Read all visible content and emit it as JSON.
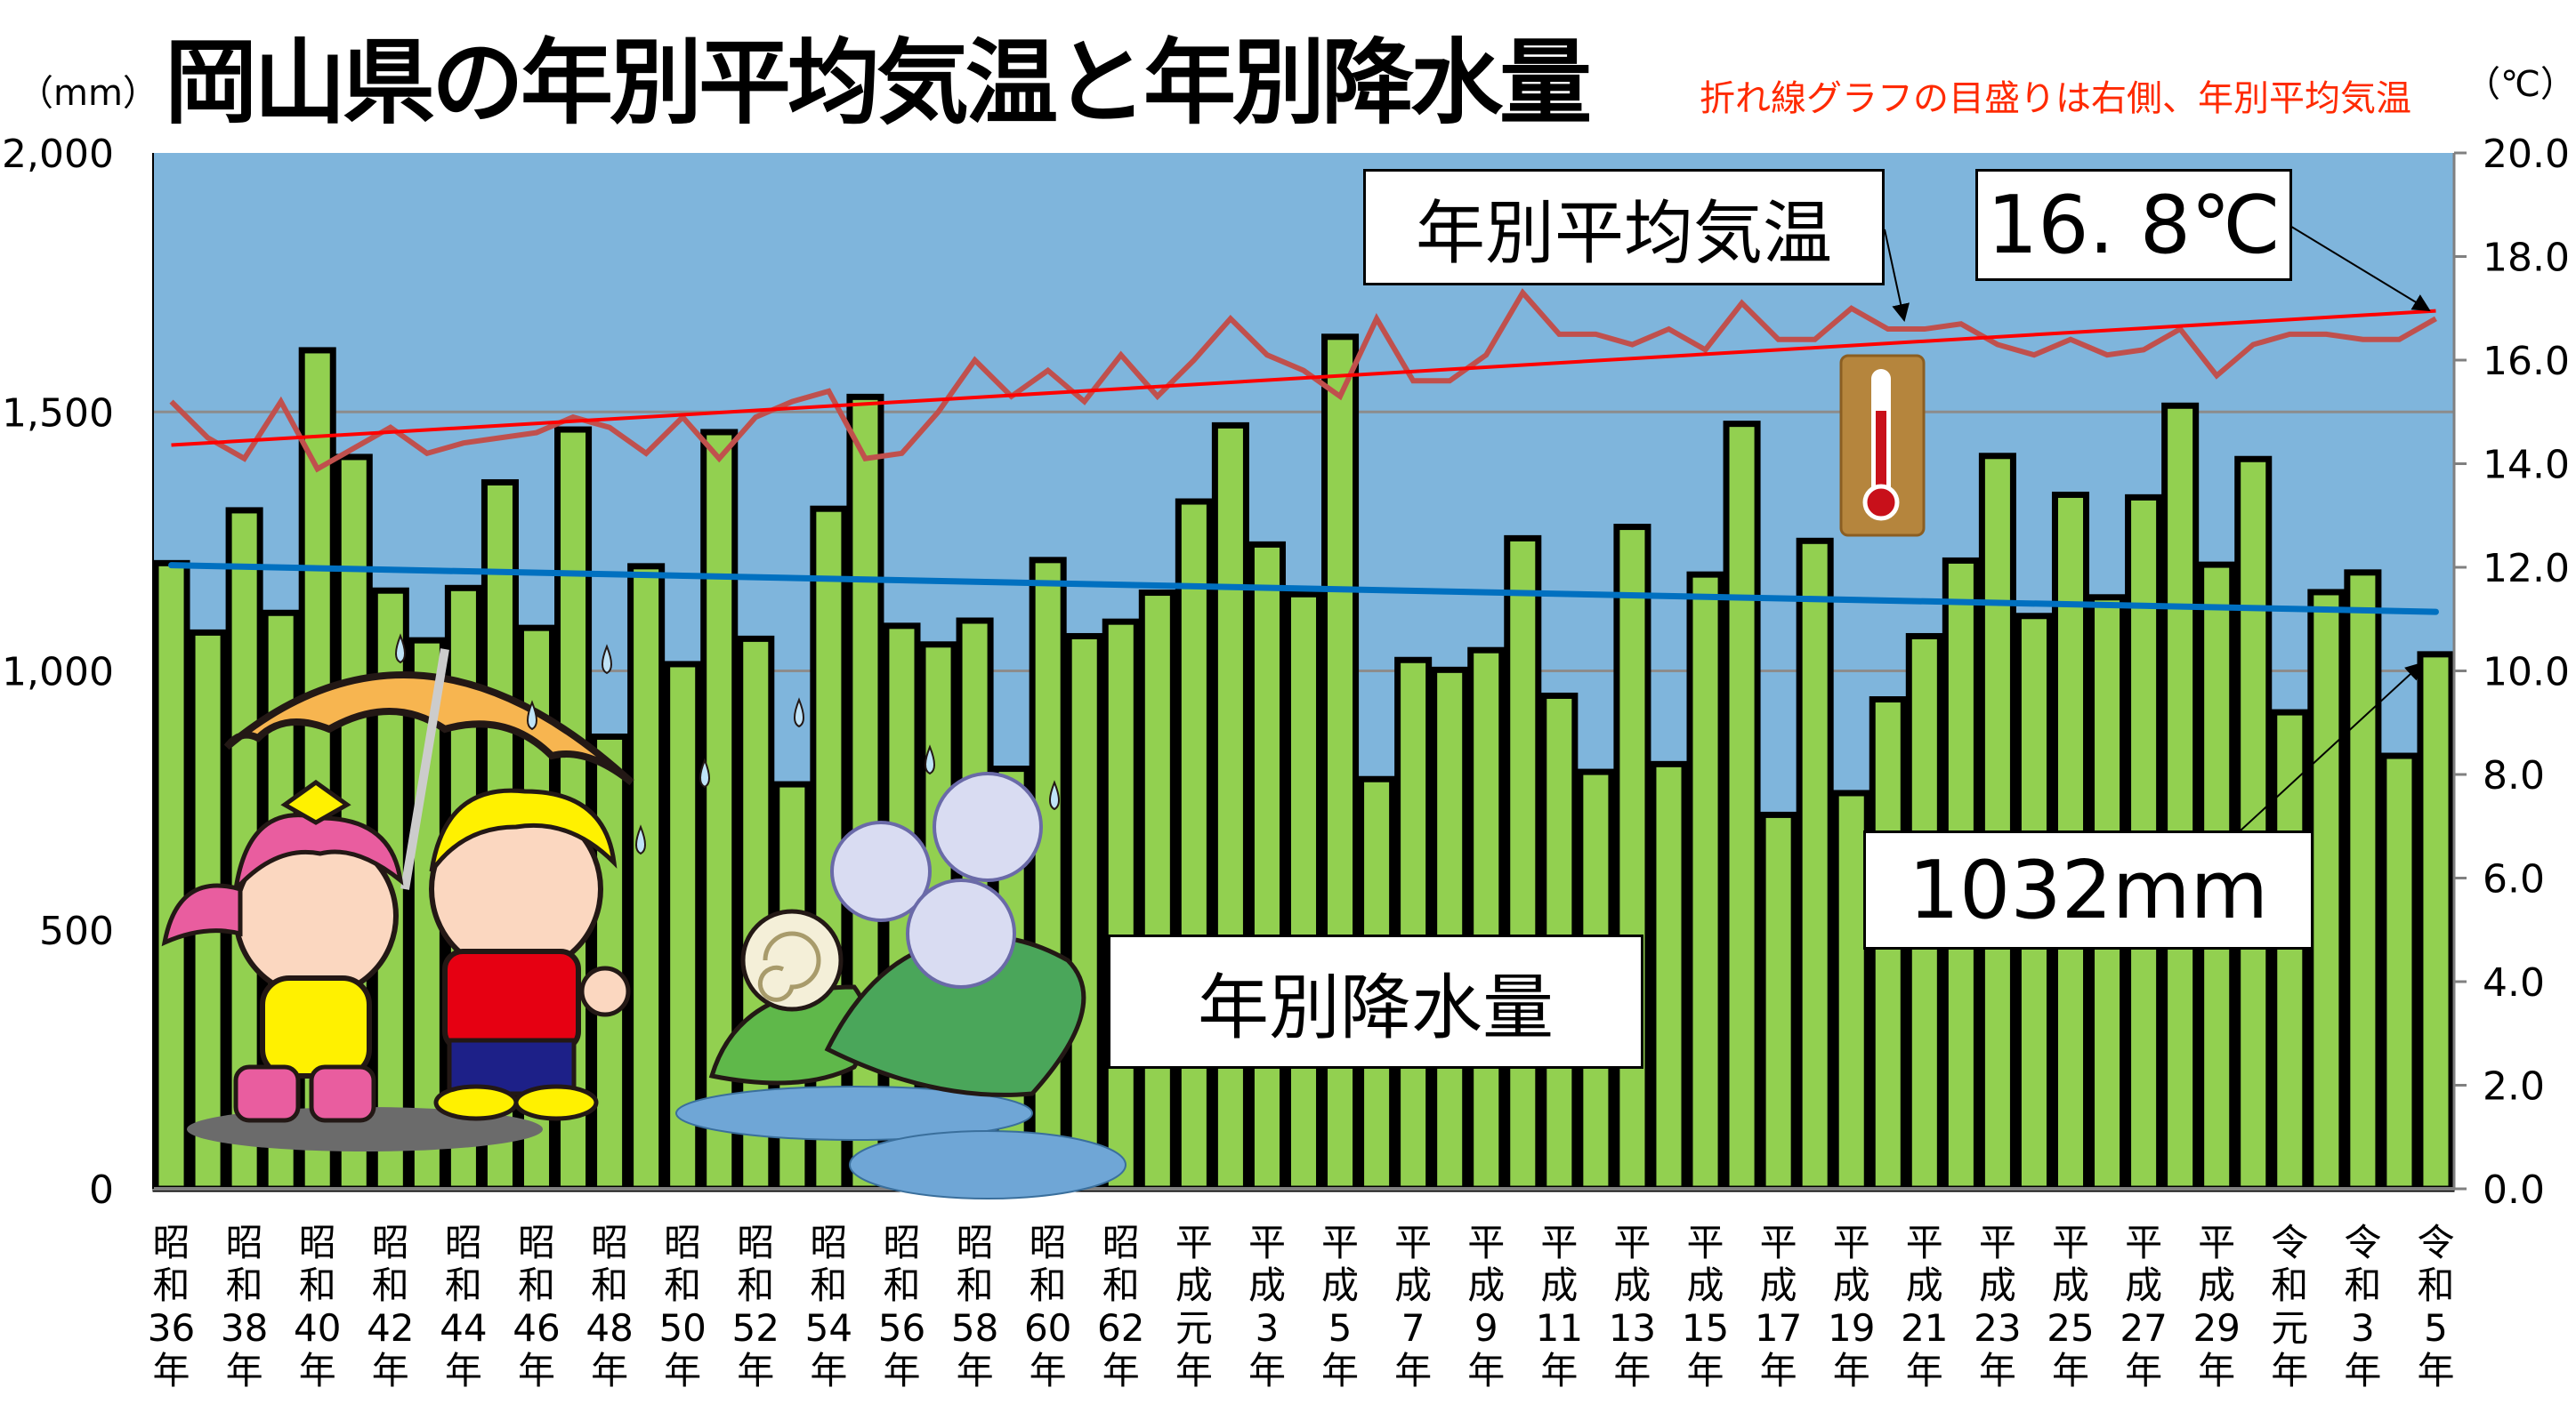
{
  "header": {
    "title": "岡山県の年別平均気温と年別降水量",
    "left_unit": "（mm）",
    "right_unit": "（℃）",
    "note": "折れ線グラフの目盛りは右側、年別平均気温"
  },
  "callouts": {
    "temp_label": "年別平均気温",
    "temp_value": "16. 8℃",
    "rain_label": "年別降水量",
    "rain_value": "1032mm"
  },
  "colors": {
    "plot_bg": "#7fb5dc",
    "bar_fill": "#92d050",
    "bar_stroke": "#000000",
    "temp_line": "#c0504d",
    "temp_trend": "#ff0000",
    "rain_trend": "#0070c0",
    "note_text": "#ff2a00"
  },
  "chart_data": {
    "type": "bar+line",
    "title": "岡山県の年別平均気温と年別降水量",
    "ylabel": "（mm）",
    "y2label": "（℃）",
    "ylim": [
      0,
      2000
    ],
    "y2lim": [
      0,
      20
    ],
    "grid": true,
    "y_ticks": [
      "0",
      "500",
      "1,000",
      "1,500",
      "2,000"
    ],
    "y2_ticks": [
      "0.0",
      "2.0",
      "4.0",
      "6.0",
      "8.0",
      "10.0",
      "12.0",
      "14.0",
      "16.0",
      "18.0",
      "20.0"
    ],
    "x_tick_labels": [
      "昭和36年",
      "昭和38年",
      "昭和40年",
      "昭和42年",
      "昭和44年",
      "昭和46年",
      "昭和48年",
      "昭和50年",
      "昭和52年",
      "昭和54年",
      "昭和56年",
      "昭和58年",
      "昭和60年",
      "昭和62年",
      "平成元年",
      "平成3年",
      "平成5年",
      "平成7年",
      "平成9年",
      "平成11年",
      "平成13年",
      "平成15年",
      "平成17年",
      "平成19年",
      "平成21年",
      "平成23年",
      "平成25年",
      "平成27年",
      "平成29年",
      "令和元年",
      "令和3年",
      "令和5年"
    ],
    "series": [
      {
        "name": "年別降水量",
        "type": "bar",
        "axis": "left",
        "values": [
          1208,
          1074,
          1310,
          1112,
          1619,
          1413,
          1155,
          1059,
          1160,
          1364,
          1083,
          1466,
          873,
          1202,
          1013,
          1461,
          1062,
          781,
          1313,
          1529,
          1087,
          1051,
          1097,
          811,
          1214,
          1067,
          1095,
          1151,
          1327,
          1474,
          1244,
          1148,
          1645,
          791,
          1021,
          1002,
          1040,
          1256,
          952,
          805,
          1278,
          820,
          1186,
          1477,
          722,
          1251,
          764,
          945,
          1067,
          1213,
          1415,
          1106,
          1340,
          1142,
          1335,
          1512,
          1205,
          1409,
          920,
          1152,
          1190,
          836,
          1032
        ]
      },
      {
        "name": "年別平均気温",
        "type": "line",
        "axis": "right",
        "values": [
          15.2,
          14.5,
          14.1,
          15.2,
          13.9,
          14.3,
          14.7,
          14.2,
          14.4,
          14.5,
          14.6,
          14.9,
          14.7,
          14.2,
          14.9,
          14.1,
          14.9,
          15.2,
          15.4,
          14.1,
          14.2,
          15.0,
          16.0,
          15.3,
          15.8,
          15.2,
          16.1,
          15.3,
          16.0,
          16.8,
          16.1,
          15.8,
          15.3,
          16.8,
          15.6,
          15.6,
          16.1,
          17.3,
          16.5,
          16.5,
          16.3,
          16.6,
          16.2,
          17.1,
          16.4,
          16.4,
          17.0,
          16.6,
          16.6,
          16.7,
          16.3,
          16.1,
          16.4,
          16.1,
          16.2,
          16.6,
          15.7,
          16.3,
          16.5,
          16.5,
          16.4,
          16.4,
          16.8
        ]
      }
    ],
    "trendlines": [
      {
        "series": "年別平均気温",
        "start": 14.36,
        "end": 16.95
      },
      {
        "series": "年別降水量",
        "start": 1204,
        "end": 1114
      }
    ]
  }
}
